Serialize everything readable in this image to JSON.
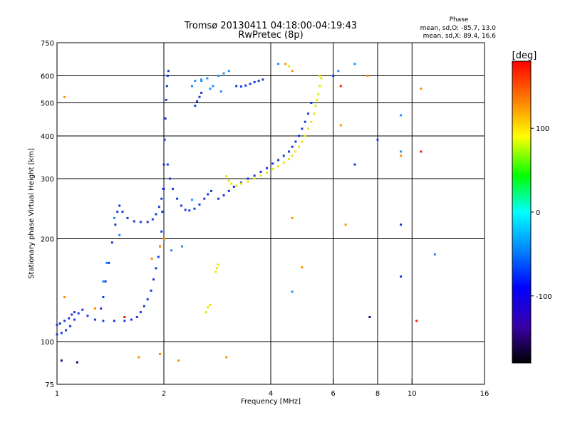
{
  "chart_data": {
    "type": "scatter",
    "title": "Tromsø 20130411 04:18:00-04:19:43",
    "subtitle": "RwPretec (8p)",
    "xlabel": "Frequency [MHz]",
    "ylabel": "Stationary phase Virtual Height [km]",
    "x_scale": "log",
    "y_scale": "log",
    "xlim": [
      1,
      16
    ],
    "ylim": [
      75,
      750
    ],
    "x_ticks": [
      1,
      2,
      4,
      6,
      8,
      10,
      16
    ],
    "y_ticks": [
      75,
      100,
      200,
      300,
      400,
      500,
      600,
      750
    ],
    "x_gridlines": [
      2,
      4,
      6,
      8,
      10
    ],
    "y_gridlines": [
      100,
      200,
      300,
      400,
      500,
      600
    ],
    "grid": true,
    "stats": {
      "heading": "Phase",
      "line1": "mean, sd,O: -85.7, 13.0",
      "line2": "mean, sd,X:  89.4, 16.6"
    },
    "colorbar": {
      "label": "[deg]",
      "range": [
        -180,
        180
      ],
      "ticks": [
        100,
        0,
        -100
      ],
      "colormap": [
        "#000000",
        "#3a00a8",
        "#0000ff",
        "#0080ff",
        "#00ffff",
        "#00ff00",
        "#ffff00",
        "#ff8000",
        "#ff0000"
      ]
    },
    "series": [
      {
        "color": "#1838d8",
        "points": [
          [
            1.0,
            105
          ],
          [
            1.03,
            106
          ],
          [
            1.06,
            108
          ],
          [
            1.09,
            111
          ],
          [
            1.12,
            116
          ],
          [
            1.15,
            121
          ],
          [
            1.18,
            124
          ],
          [
            1.22,
            119
          ],
          [
            1.28,
            116
          ],
          [
            1.35,
            115
          ],
          [
            1.45,
            115
          ],
          [
            1.55,
            115
          ],
          [
            1.62,
            116
          ],
          [
            1.68,
            118
          ],
          [
            1.72,
            122
          ],
          [
            1.76,
            127
          ],
          [
            1.8,
            133
          ],
          [
            1.84,
            141
          ],
          [
            1.87,
            152
          ],
          [
            1.9,
            164
          ],
          [
            1.93,
            177
          ],
          [
            1.95,
            190
          ],
          [
            1.97,
            210
          ],
          [
            1.98,
            240
          ],
          [
            1.99,
            280
          ],
          [
            2.0,
            330
          ],
          [
            2.01,
            390
          ],
          [
            2.02,
            450
          ],
          [
            2.03,
            510
          ],
          [
            2.04,
            560
          ],
          [
            2.05,
            600
          ],
          [
            2.06,
            620
          ],
          [
            1.33,
            125
          ],
          [
            1.35,
            135
          ],
          [
            1.37,
            150
          ],
          [
            1.4,
            170
          ],
          [
            1.43,
            195
          ],
          [
            1.46,
            220
          ],
          [
            1.48,
            240
          ],
          [
            1.5,
            250
          ],
          [
            1.53,
            240
          ],
          [
            1.58,
            230
          ],
          [
            1.65,
            225
          ],
          [
            1.72,
            224
          ],
          [
            1.8,
            224
          ],
          [
            1.86,
            228
          ],
          [
            1.9,
            236
          ],
          [
            1.94,
            248
          ],
          [
            1.97,
            262
          ],
          [
            2.0,
            280
          ],
          [
            2.05,
            330
          ],
          [
            2.08,
            300
          ],
          [
            2.12,
            280
          ],
          [
            2.18,
            262
          ],
          [
            2.24,
            250
          ],
          [
            2.3,
            243
          ],
          [
            2.36,
            242
          ],
          [
            2.44,
            245
          ],
          [
            2.52,
            252
          ],
          [
            2.6,
            262
          ],
          [
            2.66,
            270
          ],
          [
            2.72,
            276
          ],
          [
            2.45,
            490
          ],
          [
            2.48,
            505
          ],
          [
            2.52,
            520
          ],
          [
            2.55,
            535
          ],
          [
            2.85,
            262
          ],
          [
            2.95,
            268
          ],
          [
            3.05,
            276
          ],
          [
            3.15,
            284
          ],
          [
            3.3,
            292
          ],
          [
            3.45,
            300
          ],
          [
            3.6,
            306
          ],
          [
            3.75,
            314
          ],
          [
            3.9,
            322
          ],
          [
            4.05,
            332
          ],
          [
            4.2,
            340
          ],
          [
            4.35,
            350
          ],
          [
            4.5,
            360
          ],
          [
            4.6,
            372
          ],
          [
            4.7,
            385
          ],
          [
            4.8,
            400
          ],
          [
            4.9,
            420
          ],
          [
            5.0,
            440
          ],
          [
            5.1,
            465
          ],
          [
            5.2,
            500
          ],
          [
            3.2,
            560
          ],
          [
            3.3,
            558
          ],
          [
            3.4,
            562
          ],
          [
            3.5,
            568
          ],
          [
            3.6,
            575
          ],
          [
            3.7,
            580
          ],
          [
            3.8,
            585
          ],
          [
            1.0,
            112
          ],
          [
            1.02,
            113
          ],
          [
            1.05,
            115
          ],
          [
            1.08,
            117
          ],
          [
            1.1,
            120
          ],
          [
            1.12,
            122
          ],
          [
            6.0,
            600
          ],
          [
            6.9,
            330
          ],
          [
            9.3,
            220
          ],
          [
            9.3,
            155
          ],
          [
            8.0,
            390
          ]
        ]
      },
      {
        "color": "#1e90ff",
        "points": [
          [
            2.4,
            560
          ],
          [
            2.45,
            580
          ],
          [
            2.55,
            585
          ],
          [
            2.65,
            590
          ],
          [
            2.75,
            560
          ],
          [
            2.85,
            600
          ],
          [
            2.95,
            610
          ],
          [
            3.05,
            620
          ],
          [
            1.35,
            150
          ],
          [
            1.38,
            170
          ],
          [
            1.45,
            230
          ],
          [
            1.5,
            205
          ],
          [
            2.1,
            185
          ],
          [
            2.25,
            190
          ],
          [
            2.4,
            260
          ],
          [
            2.55,
            580
          ],
          [
            2.7,
            550
          ],
          [
            2.9,
            540
          ],
          [
            4.2,
            650
          ],
          [
            6.9,
            650
          ],
          [
            9.3,
            460
          ],
          [
            9.3,
            360
          ],
          [
            11.6,
            180
          ],
          [
            4.6,
            140
          ],
          [
            6.2,
            620
          ]
        ]
      },
      {
        "color": "#e8e800",
        "points": [
          [
            3.0,
            305
          ],
          [
            3.05,
            296
          ],
          [
            3.1,
            290
          ],
          [
            3.2,
            286
          ],
          [
            3.3,
            290
          ],
          [
            3.45,
            294
          ],
          [
            3.6,
            300
          ],
          [
            3.75,
            306
          ],
          [
            3.9,
            312
          ],
          [
            4.05,
            320
          ],
          [
            4.2,
            326
          ],
          [
            4.35,
            334
          ],
          [
            4.5,
            342
          ],
          [
            4.6,
            350
          ],
          [
            4.7,
            360
          ],
          [
            4.8,
            372
          ],
          [
            4.9,
            385
          ],
          [
            5.0,
            400
          ],
          [
            5.1,
            420
          ],
          [
            5.2,
            440
          ],
          [
            5.3,
            465
          ],
          [
            5.35,
            490
          ],
          [
            5.4,
            510
          ],
          [
            5.45,
            530
          ],
          [
            5.5,
            560
          ],
          [
            5.55,
            590
          ],
          [
            2.8,
            160
          ],
          [
            2.82,
            164
          ],
          [
            2.84,
            168
          ],
          [
            2.63,
            122
          ],
          [
            2.66,
            126
          ],
          [
            2.7,
            128
          ],
          [
            5.5,
            600
          ],
          [
            4.5,
            640
          ]
        ]
      },
      {
        "color": "#ff8c00",
        "points": [
          [
            1.85,
            175
          ],
          [
            1.95,
            190
          ],
          [
            2.0,
            200
          ],
          [
            1.28,
            125
          ],
          [
            1.05,
            135
          ],
          [
            1.55,
            118
          ],
          [
            4.4,
            650
          ],
          [
            4.6,
            620
          ],
          [
            3.0,
            90
          ],
          [
            1.7,
            90
          ],
          [
            2.2,
            88
          ],
          [
            1.95,
            92
          ],
          [
            7.5,
            600
          ],
          [
            6.3,
            430
          ],
          [
            6.5,
            220
          ],
          [
            4.6,
            230
          ],
          [
            4.9,
            165
          ],
          [
            9.3,
            350
          ],
          [
            10.6,
            550
          ],
          [
            1.05,
            520
          ]
        ]
      },
      {
        "color": "#ff2000",
        "points": [
          [
            1.55,
            118
          ],
          [
            6.3,
            560
          ],
          [
            10.3,
            115
          ],
          [
            10.6,
            360
          ]
        ]
      },
      {
        "color": "#2a0080",
        "points": [
          [
            1.03,
            88
          ],
          [
            1.14,
            87
          ],
          [
            7.6,
            118
          ]
        ]
      }
    ]
  }
}
